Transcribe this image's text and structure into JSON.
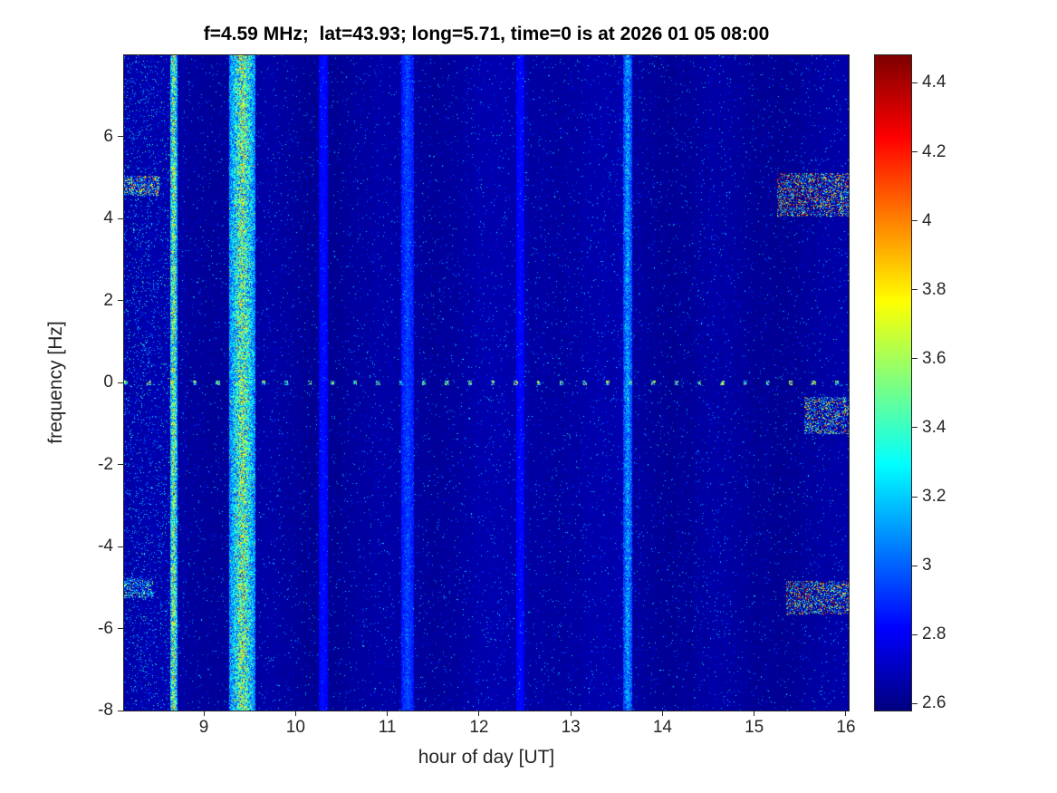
{
  "figure": {
    "background": "#ffffff",
    "frame_color": "#262626",
    "text_color": "#262626"
  },
  "chart_data": {
    "type": "heatmap",
    "title": "f=4.59 MHz;  lat=43.93; long=5.71, time=0 is at 2026 01 05 08:00",
    "xlabel": "hour of day [UT]",
    "ylabel": "frequency [Hz]",
    "x_range": [
      8.13,
      16.03
    ],
    "y_range": [
      -8,
      7.98
    ],
    "x_ticks": [
      9,
      10,
      11,
      12,
      13,
      14,
      15,
      16
    ],
    "y_ticks": [
      -8,
      -6,
      -4,
      -2,
      0,
      2,
      4,
      6
    ],
    "colormap": "jet",
    "color_range": [
      2.58,
      4.48
    ],
    "colorbar_ticks": [
      2.6,
      2.8,
      3,
      3.2,
      3.4,
      3.6,
      3.8,
      4,
      4.2,
      4.4
    ],
    "grid": false,
    "legend": "colorbar-right",
    "noise": {
      "base": 2.615,
      "uniform": 0.055,
      "speckle_prob": 0.035,
      "speckle_max": 0.6
    },
    "features": {
      "vertical_streaks": [
        {
          "hour": 8.67,
          "half_width_hours": 0.04,
          "strength": 1.05
        },
        {
          "hour": 9.42,
          "half_width_hours": 0.14,
          "strength": 0.95
        },
        {
          "hour": 11.22,
          "half_width_hours": 0.07,
          "strength": 0.22
        },
        {
          "hour": 13.62,
          "half_width_hours": 0.05,
          "strength": 0.45
        },
        {
          "hour": 10.3,
          "half_width_hours": 0.05,
          "strength": 0.08
        },
        {
          "hour": 12.45,
          "half_width_hours": 0.04,
          "strength": 0.07
        }
      ],
      "dashed_line_freq": 0,
      "dash_period_hours": 0.25,
      "dash_strength": 1.0,
      "patches": [
        {
          "hours": [
            8.13,
            8.52
          ],
          "freqs": [
            4.55,
            5.05
          ],
          "strength": 0.75,
          "density": 0.5
        },
        {
          "hours": [
            8.13,
            8.45
          ],
          "freqs": [
            -5.25,
            -4.75
          ],
          "strength": 0.55,
          "density": 0.45
        },
        {
          "hours": [
            8.13,
            8.62
          ],
          "freqs": [
            -8,
            7.98
          ],
          "strength": 0.4,
          "density": 0.06
        },
        {
          "hours": [
            15.25,
            16.03
          ],
          "freqs": [
            4.05,
            5.1
          ],
          "strength": 1.0,
          "density": 0.4
        },
        {
          "hours": [
            15.55,
            16.03
          ],
          "freqs": [
            -1.25,
            -0.35
          ],
          "strength": 0.8,
          "density": 0.4
        },
        {
          "hours": [
            15.35,
            16.03
          ],
          "freqs": [
            -5.65,
            -4.85
          ],
          "strength": 0.95,
          "density": 0.4
        }
      ]
    }
  }
}
